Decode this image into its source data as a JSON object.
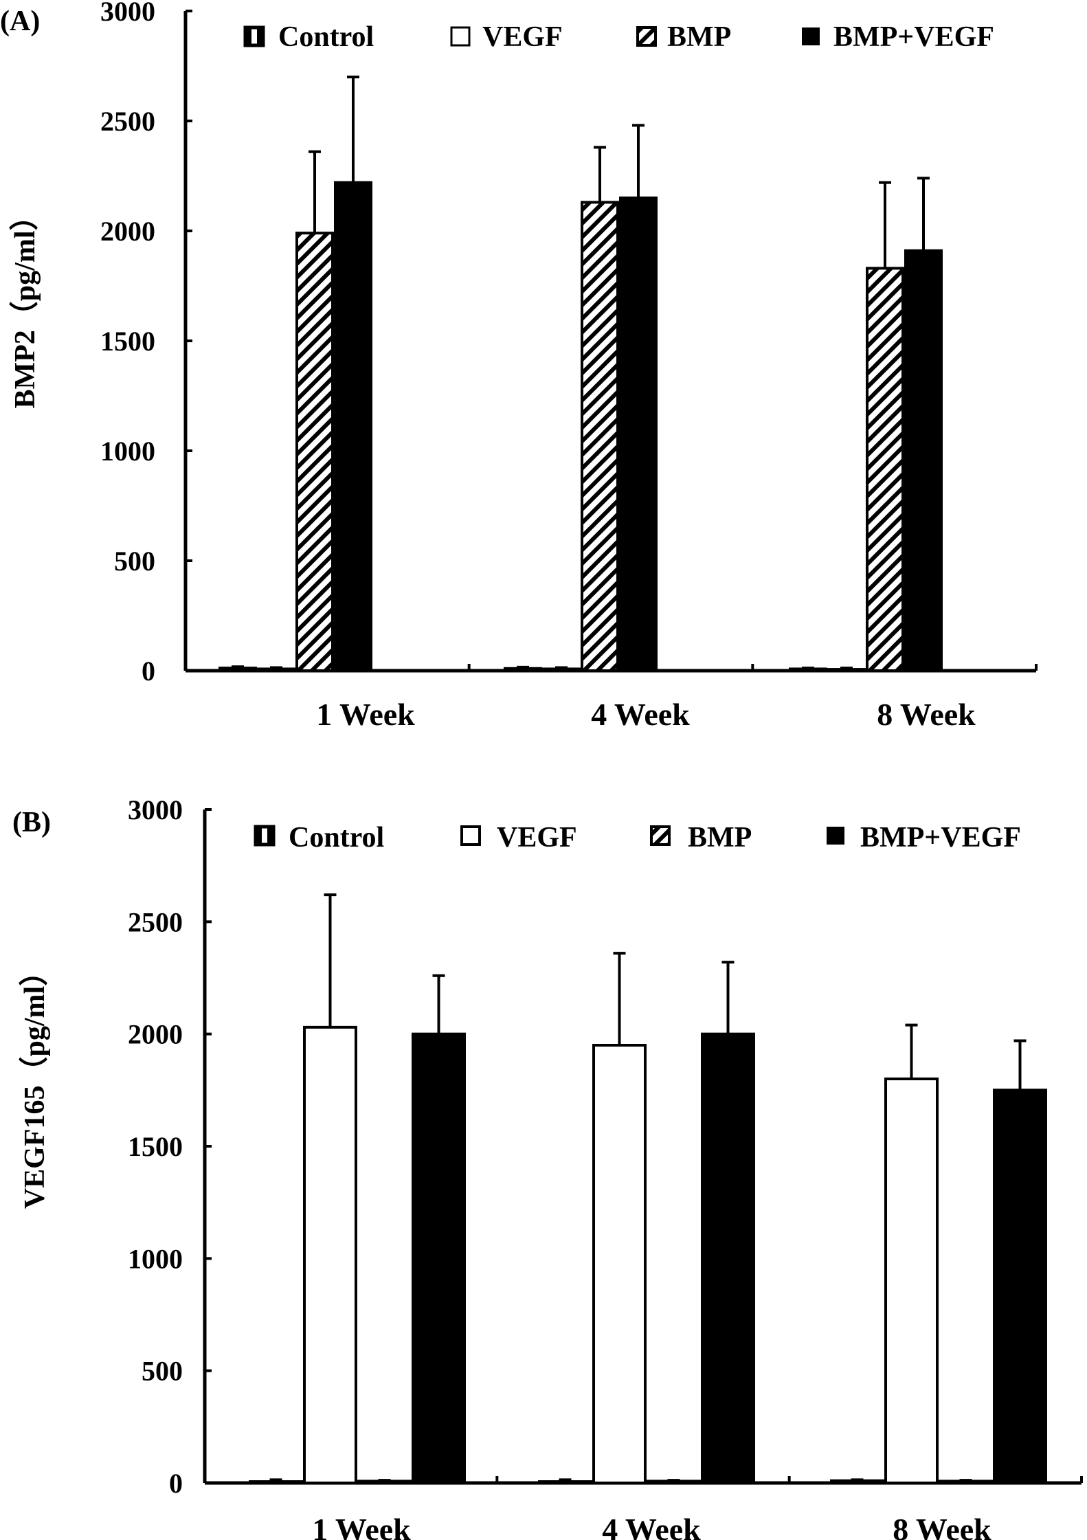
{
  "chart_data": [
    {
      "type": "bar",
      "panel_label": "(A)",
      "ylabel": "BMP2（pg/ml）",
      "xlabel": "",
      "ylim": [
        0,
        3000
      ],
      "yticks": [
        0,
        500,
        1000,
        1500,
        2000,
        2500,
        3000
      ],
      "categories": [
        "1 Week",
        "4 Week",
        "8 Week"
      ],
      "legend_position": "top",
      "series": [
        {
          "name": "Control",
          "pattern": "vertical-stripe",
          "values": [
            12,
            10,
            8
          ],
          "errors": [
            6,
            6,
            4
          ]
        },
        {
          "name": "VEGF",
          "pattern": "open",
          "values": [
            8,
            8,
            6
          ],
          "errors": [
            6,
            6,
            6
          ]
        },
        {
          "name": "BMP",
          "pattern": "diagonal-hatch",
          "values": [
            1990,
            2130,
            1830
          ],
          "errors": [
            370,
            250,
            390
          ]
        },
        {
          "name": "BMP+VEGF",
          "pattern": "solid",
          "values": [
            2220,
            2150,
            1910
          ],
          "errors": [
            480,
            330,
            330
          ]
        }
      ]
    },
    {
      "type": "bar",
      "panel_label": "(B)",
      "ylabel": "VEGF165（pg/ml）",
      "xlabel": "",
      "ylim": [
        0,
        3000
      ],
      "yticks": [
        0,
        500,
        1000,
        1500,
        2000,
        2500,
        3000
      ],
      "categories": [
        "1 Week",
        "4 Week",
        "8 Week"
      ],
      "legend_position": "top",
      "series": [
        {
          "name": "Control",
          "pattern": "vertical-stripe",
          "values": [
            6,
            6,
            10
          ],
          "errors": [
            8,
            8,
            4
          ]
        },
        {
          "name": "VEGF",
          "pattern": "open",
          "values": [
            2030,
            1950,
            1800
          ],
          "errors": [
            590,
            410,
            240
          ]
        },
        {
          "name": "BMP",
          "pattern": "diagonal-hatch",
          "values": [
            8,
            8,
            8
          ],
          "errors": [
            4,
            4,
            4
          ]
        },
        {
          "name": "BMP+VEGF",
          "pattern": "solid",
          "values": [
            2000,
            2000,
            1750
          ],
          "errors": [
            260,
            320,
            220
          ]
        }
      ]
    }
  ]
}
